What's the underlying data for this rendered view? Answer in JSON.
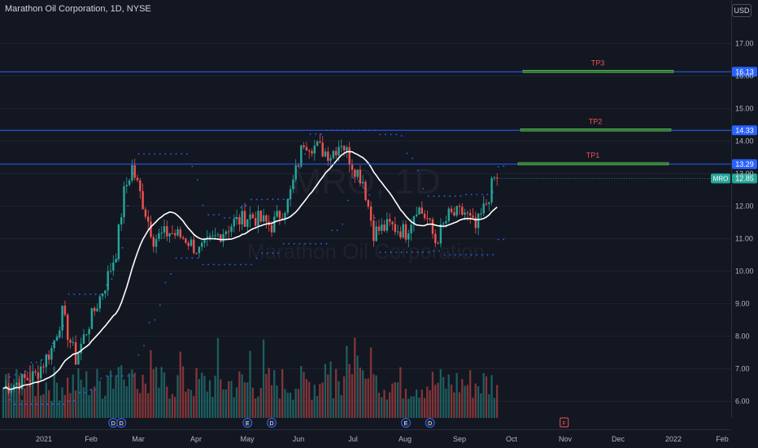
{
  "header": {
    "title": "Marathon Oil Corporation, 1D, NYSE",
    "currency": "USD",
    "watermark": "MRO, 1D",
    "watermark_sub": "Marathon Oil Corporation"
  },
  "colors": {
    "background": "#131722",
    "up": "#26a69a",
    "down": "#ef5350",
    "hline": "#2962ff",
    "target_box": "#2e7d32",
    "target_label": "#ef5350",
    "ma": "#ffffff",
    "envelope": "#2962ff"
  },
  "chart_data": {
    "type": "candlestick",
    "y_axis": {
      "ticks": [
        "17.00",
        "16.00",
        "15.00",
        "14.00",
        "13.00",
        "12.00",
        "11.00",
        "10.00",
        "9.00",
        "8.00",
        "7.00",
        "6.00"
      ],
      "range": [
        5.4,
        18.2
      ]
    },
    "x_axis": {
      "ticks": [
        "2021",
        "Feb",
        "Mar",
        "Apr",
        "May",
        "Jun",
        "Jul",
        "Aug",
        "Sep",
        "Oct",
        "Nov",
        "Dec",
        "2022",
        "Feb"
      ]
    },
    "horizontal_levels": [
      {
        "label": "TP3",
        "price": 16.13,
        "price_label": "16.13"
      },
      {
        "label": "TP2",
        "price": 14.33,
        "price_label": "14.33"
      },
      {
        "label": "TP1",
        "price": 13.29,
        "price_label": "13.29"
      }
    ],
    "last_price": {
      "ticker": "MRO",
      "price": 12.85,
      "price_label": "12.85"
    },
    "series_close": [
      [
        0,
        6.4
      ],
      [
        6,
        6.6
      ],
      [
        12,
        6.8
      ],
      [
        18,
        7.6
      ],
      [
        22,
        8.7
      ],
      [
        24,
        8.1
      ],
      [
        27,
        7.3
      ],
      [
        32,
        8.4
      ],
      [
        38,
        9.6
      ],
      [
        42,
        10.6
      ],
      [
        45,
        12.4
      ],
      [
        48,
        13.2
      ],
      [
        52,
        12.1
      ],
      [
        56,
        11.0
      ],
      [
        62,
        11.2
      ],
      [
        68,
        11.0
      ],
      [
        73,
        10.6
      ],
      [
        80,
        11.1
      ],
      [
        86,
        11.5
      ],
      [
        92,
        11.7
      ],
      [
        100,
        11.4
      ],
      [
        106,
        12.1
      ],
      [
        112,
        14.0
      ],
      [
        117,
        13.8
      ],
      [
        122,
        13.6
      ],
      [
        126,
        14.0
      ],
      [
        130,
        13.3
      ],
      [
        134,
        12.8
      ],
      [
        138,
        11.2
      ],
      [
        144,
        11.4
      ],
      [
        150,
        11.2
      ],
      [
        154,
        12.0
      ],
      [
        158,
        11.6
      ],
      [
        161,
        10.9
      ],
      [
        166,
        11.7
      ],
      [
        172,
        11.8
      ],
      [
        176,
        11.3
      ],
      [
        180,
        12.1
      ],
      [
        183,
        12.85
      ]
    ],
    "events": [
      {
        "label": "D",
        "color": "#2962ff",
        "x_index": 41
      },
      {
        "label": "D",
        "color": "#2962ff",
        "x_index": 44
      },
      {
        "label": "E",
        "color": "#2962ff",
        "x_index": 91
      },
      {
        "label": "D",
        "color": "#2962ff",
        "x_index": 100
      },
      {
        "label": "E",
        "color": "#2962ff",
        "x_index": 150
      },
      {
        "label": "D",
        "color": "#2962ff",
        "x_index": 159
      },
      {
        "label": "F",
        "color": "#ef5350",
        "x_index": 209
      }
    ]
  }
}
